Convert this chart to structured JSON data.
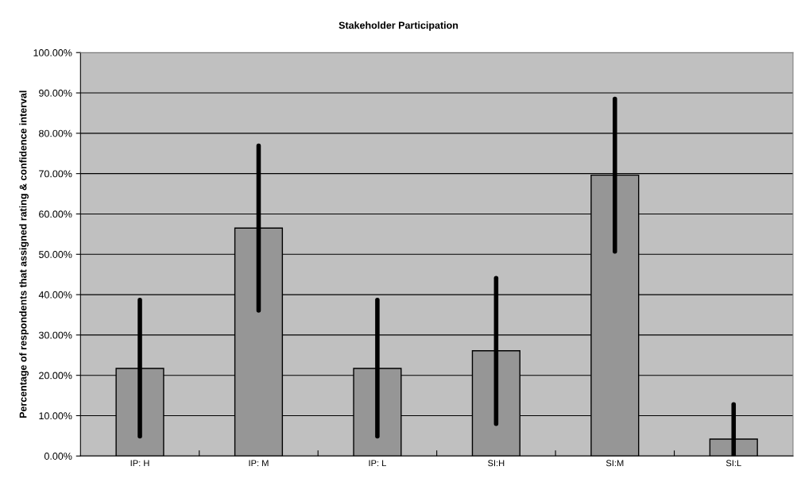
{
  "chart_data": {
    "type": "bar",
    "title": "Stakeholder Participation",
    "ylabel": "Percentage of respondents that assigned rating & confidence interval",
    "categories": [
      "IP: H",
      "IP: M",
      "IP: L",
      "SI:H",
      "SI:M",
      "SI:L"
    ],
    "values": [
      21.7,
      56.5,
      21.7,
      26.1,
      69.6,
      4.2
    ],
    "errors": [
      [
        4.9,
        38.7
      ],
      [
        36.1,
        76.9
      ],
      [
        4.9,
        38.7
      ],
      [
        8.0,
        44.1
      ],
      [
        50.7,
        88.5
      ],
      [
        0.0,
        12.8
      ]
    ],
    "color": "#969696",
    "ylim": [
      0,
      100
    ],
    "yticks": [
      {
        "value": 0,
        "label": "0.00%"
      },
      {
        "value": 10,
        "label": "10.00%"
      },
      {
        "value": 20,
        "label": "20.00%"
      },
      {
        "value": 30,
        "label": "30.00%"
      },
      {
        "value": 40,
        "label": "40.00%"
      },
      {
        "value": 50,
        "label": "50.00%"
      },
      {
        "value": 60,
        "label": "60.00%"
      },
      {
        "value": 70,
        "label": "70.00%"
      },
      {
        "value": 80,
        "label": "80.00%"
      },
      {
        "value": 90,
        "label": "90.00%"
      },
      {
        "value": 100,
        "label": "100.00%"
      }
    ],
    "grid": "y"
  }
}
